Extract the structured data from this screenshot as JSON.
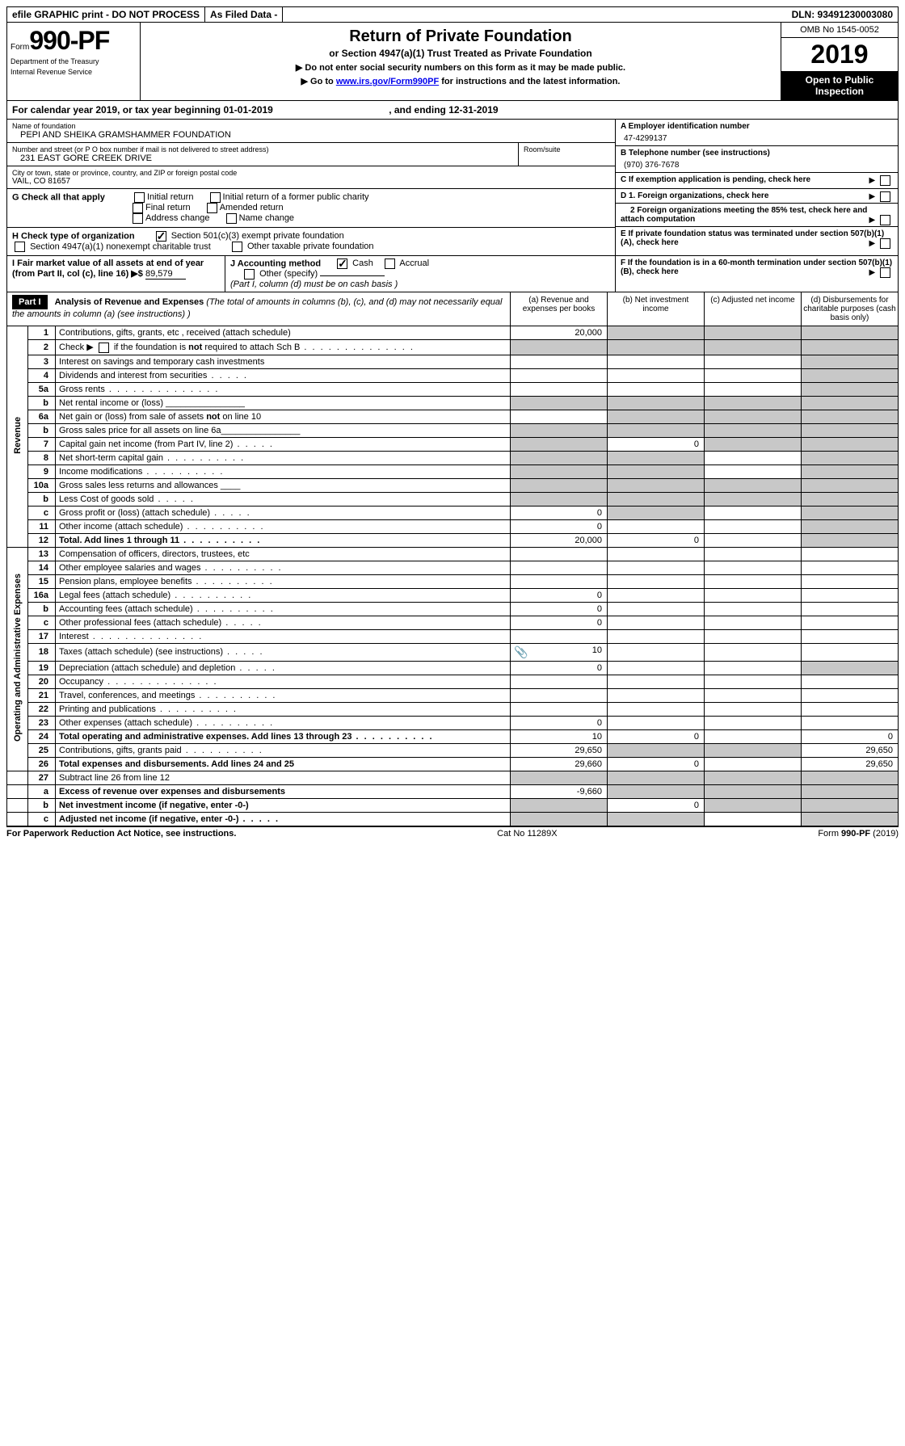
{
  "top": {
    "efile": "efile GRAPHIC print - DO NOT PROCESS",
    "asfiled": "As Filed Data -",
    "dln": "DLN: 93491230003080"
  },
  "header": {
    "form_prefix": "Form",
    "form_no": "990-PF",
    "dept1": "Department of the Treasury",
    "dept2": "Internal Revenue Service",
    "title": "Return of Private Foundation",
    "subtitle": "or Section 4947(a)(1) Trust Treated as Private Foundation",
    "note1": "▶ Do not enter social security numbers on this form as it may be made public.",
    "note2_pre": "▶ Go to ",
    "note2_link": "www.irs.gov/Form990PF",
    "note2_post": " for instructions and the latest information.",
    "omb": "OMB No 1545-0052",
    "year": "2019",
    "open": "Open to Public Inspection"
  },
  "calyear": {
    "text_pre": "For calendar year 2019, or tax year beginning ",
    "begin": "01-01-2019",
    "text_mid": " , and ending ",
    "end": "12-31-2019"
  },
  "info": {
    "name_label": "Name of foundation",
    "name": "PEPI AND SHEIKA GRAMSHAMMER FOUNDATION",
    "addr_label": "Number and street (or P O  box number if mail is not delivered to street address)",
    "addr": "231 EAST GORE CREEK DRIVE",
    "room_label": "Room/suite",
    "city_label": "City or town, state or province, country, and ZIP or foreign postal code",
    "city": "VAIL, CO  81657",
    "a_label": "A Employer identification number",
    "a_val": "47-4299137",
    "b_label": "B Telephone number (see instructions)",
    "b_val": "(970) 376-7678",
    "c_label": "C If exemption application is pending, check here",
    "d1": "D 1. Foreign organizations, check here",
    "d2": "2  Foreign organizations meeting the 85% test, check here and attach computation",
    "e": "E  If private foundation status was terminated under section 507(b)(1)(A), check here",
    "f": "F  If the foundation is in a 60-month termination under section 507(b)(1)(B), check here"
  },
  "g": {
    "label": "G Check all that apply",
    "opts": [
      "Initial return",
      "Initial return of a former public charity",
      "Final return",
      "Amended return",
      "Address change",
      "Name change"
    ]
  },
  "h": {
    "label": "H Check type of organization",
    "opt1": "Section 501(c)(3) exempt private foundation",
    "opt2": "Section 4947(a)(1) nonexempt charitable trust",
    "opt3": "Other taxable private foundation"
  },
  "i": {
    "label": "I Fair market value of all assets at end of year (from Part II, col  (c), line 16) ▶$ ",
    "val": "89,579"
  },
  "j": {
    "label": "J Accounting method",
    "cash": "Cash",
    "accrual": "Accrual",
    "other": "Other (specify)",
    "note": "(Part I, column (d) must be on cash basis )"
  },
  "part1": {
    "label": "Part I",
    "title": "Analysis of Revenue and Expenses",
    "title_note": " (The total of amounts in columns (b), (c), and (d) may not necessarily equal the amounts in column (a) (see instructions) )",
    "col_a": "(a) Revenue and expenses per books",
    "col_b": "(b) Net investment income",
    "col_c": "(c) Adjusted net income",
    "col_d": "(d) Disbursements for charitable purposes (cash basis only)"
  },
  "sections": {
    "revenue": "Revenue",
    "expenses": "Operating and Administrative Expenses"
  },
  "rows": [
    {
      "n": "1",
      "desc": "Contributions, gifts, grants, etc , received (attach schedule)",
      "a": "20,000",
      "b": "",
      "c": "",
      "d": "",
      "shade_bcd": true
    },
    {
      "n": "2",
      "desc": "Check ▶ ☐ if the foundation is not required to attach Sch  B",
      "dots": "l",
      "a": "",
      "b": "",
      "c": "",
      "d": "",
      "shade_all": true
    },
    {
      "n": "3",
      "desc": "Interest on savings and temporary cash investments",
      "a": "",
      "b": "",
      "c": "",
      "d": "",
      "shade_d": true
    },
    {
      "n": "4",
      "desc": "Dividends and interest from securities",
      "dots": "s",
      "a": "",
      "b": "",
      "c": "",
      "d": "",
      "shade_d": true
    },
    {
      "n": "5a",
      "desc": "Gross rents",
      "dots": "l",
      "a": "",
      "b": "",
      "c": "",
      "d": "",
      "shade_d": true
    },
    {
      "n": "b",
      "desc": "Net rental income or (loss)  ________________",
      "a": "",
      "b": "",
      "c": "",
      "d": "",
      "shade_all": true
    },
    {
      "n": "6a",
      "desc": "Net gain or (loss) from sale of assets not on line 10",
      "a": "",
      "b": "",
      "c": "",
      "d": "",
      "shade_bcd": true
    },
    {
      "n": "b",
      "desc": "Gross sales price for all assets on line 6a________________",
      "a": "",
      "b": "",
      "c": "",
      "d": "",
      "shade_all": true
    },
    {
      "n": "7",
      "desc": "Capital gain net income (from Part IV, line 2)",
      "dots": "s",
      "a": "",
      "b": "0",
      "c": "",
      "d": "",
      "shade_a": true,
      "shade_cd": true
    },
    {
      "n": "8",
      "desc": "Net short-term capital gain",
      "dots": "m",
      "a": "",
      "b": "",
      "c": "",
      "d": "",
      "shade_ab": true,
      "shade_d": true
    },
    {
      "n": "9",
      "desc": "Income modifications",
      "dots": "m",
      "a": "",
      "b": "",
      "c": "",
      "d": "",
      "shade_ab": true,
      "shade_d": true
    },
    {
      "n": "10a",
      "desc": "Gross sales less returns and allowances  ____",
      "a": "",
      "b": "",
      "c": "",
      "d": "",
      "shade_all": true
    },
    {
      "n": "b",
      "desc": "Less  Cost of goods sold",
      "dots": "s",
      "inline_box": true,
      "a": "",
      "b": "",
      "c": "",
      "d": "",
      "shade_all": true
    },
    {
      "n": "c",
      "desc": "Gross profit or (loss) (attach schedule)",
      "dots": "s",
      "a": "0",
      "b": "",
      "c": "",
      "d": "",
      "shade_b": true,
      "shade_d": true
    },
    {
      "n": "11",
      "desc": "Other income (attach schedule)",
      "dots": "m",
      "a": "0",
      "b": "",
      "c": "",
      "d": "",
      "shade_d": true
    },
    {
      "n": "12",
      "desc": "Total. Add lines 1 through 11",
      "bold": true,
      "dots": "m",
      "a": "20,000",
      "b": "0",
      "c": "",
      "d": "",
      "shade_d": true
    }
  ],
  "exp_rows": [
    {
      "n": "13",
      "desc": "Compensation of officers, directors, trustees, etc",
      "a": "",
      "b": "",
      "c": "",
      "d": ""
    },
    {
      "n": "14",
      "desc": "Other employee salaries and wages",
      "dots": "m",
      "a": "",
      "b": "",
      "c": "",
      "d": ""
    },
    {
      "n": "15",
      "desc": "Pension plans, employee benefits",
      "dots": "m",
      "a": "",
      "b": "",
      "c": "",
      "d": ""
    },
    {
      "n": "16a",
      "desc": "Legal fees (attach schedule)",
      "dots": "m",
      "a": "0",
      "b": "",
      "c": "",
      "d": ""
    },
    {
      "n": "b",
      "desc": "Accounting fees (attach schedule)",
      "dots": "m",
      "a": "0",
      "b": "",
      "c": "",
      "d": ""
    },
    {
      "n": "c",
      "desc": "Other professional fees (attach schedule)",
      "dots": "s",
      "a": "0",
      "b": "",
      "c": "",
      "d": ""
    },
    {
      "n": "17",
      "desc": "Interest",
      "dots": "l",
      "a": "",
      "b": "",
      "c": "",
      "d": ""
    },
    {
      "n": "18",
      "desc": "Taxes (attach schedule) (see instructions)",
      "dots": "s",
      "a": "10",
      "b": "",
      "c": "",
      "d": "",
      "clip": true
    },
    {
      "n": "19",
      "desc": "Depreciation (attach schedule) and depletion",
      "dots": "s",
      "a": "0",
      "b": "",
      "c": "",
      "d": "",
      "shade_d": true
    },
    {
      "n": "20",
      "desc": "Occupancy",
      "dots": "l",
      "a": "",
      "b": "",
      "c": "",
      "d": ""
    },
    {
      "n": "21",
      "desc": "Travel, conferences, and meetings",
      "dots": "m",
      "a": "",
      "b": "",
      "c": "",
      "d": ""
    },
    {
      "n": "22",
      "desc": "Printing and publications",
      "dots": "m",
      "a": "",
      "b": "",
      "c": "",
      "d": ""
    },
    {
      "n": "23",
      "desc": "Other expenses (attach schedule)",
      "dots": "m",
      "a": "0",
      "b": "",
      "c": "",
      "d": ""
    },
    {
      "n": "24",
      "desc": "Total operating and administrative expenses. Add lines 13 through 23",
      "bold": true,
      "dots": "m",
      "a": "10",
      "b": "0",
      "c": "",
      "d": "0"
    },
    {
      "n": "25",
      "desc": "Contributions, gifts, grants paid",
      "dots": "m",
      "a": "29,650",
      "b": "",
      "c": "",
      "d": "29,650",
      "shade_bc": true
    },
    {
      "n": "26",
      "desc": "Total expenses and disbursements. Add lines 24 and 25",
      "bold": true,
      "a": "29,660",
      "b": "0",
      "c": "",
      "d": "29,650"
    }
  ],
  "bottom_rows": [
    {
      "n": "27",
      "desc": "Subtract line 26 from line 12",
      "a": "",
      "b": "",
      "c": "",
      "d": "",
      "shade_all": true
    },
    {
      "n": "a",
      "desc": "Excess of revenue over expenses and disbursements",
      "bold": true,
      "a": "-9,660",
      "b": "",
      "c": "",
      "d": "",
      "shade_bcd": true
    },
    {
      "n": "b",
      "desc": "Net investment income (if negative, enter -0-)",
      "bold": true,
      "a": "",
      "b": "0",
      "c": "",
      "d": "",
      "shade_a": true,
      "shade_cd": true
    },
    {
      "n": "c",
      "desc": "Adjusted net income (if negative, enter -0-)",
      "bold": true,
      "dots": "s",
      "a": "",
      "b": "",
      "c": "",
      "d": "",
      "shade_ab": true,
      "shade_d": true
    }
  ],
  "footer": {
    "left": "For Paperwork Reduction Act Notice, see instructions.",
    "mid": "Cat  No  11289X",
    "right": "Form 990-PF (2019)"
  }
}
